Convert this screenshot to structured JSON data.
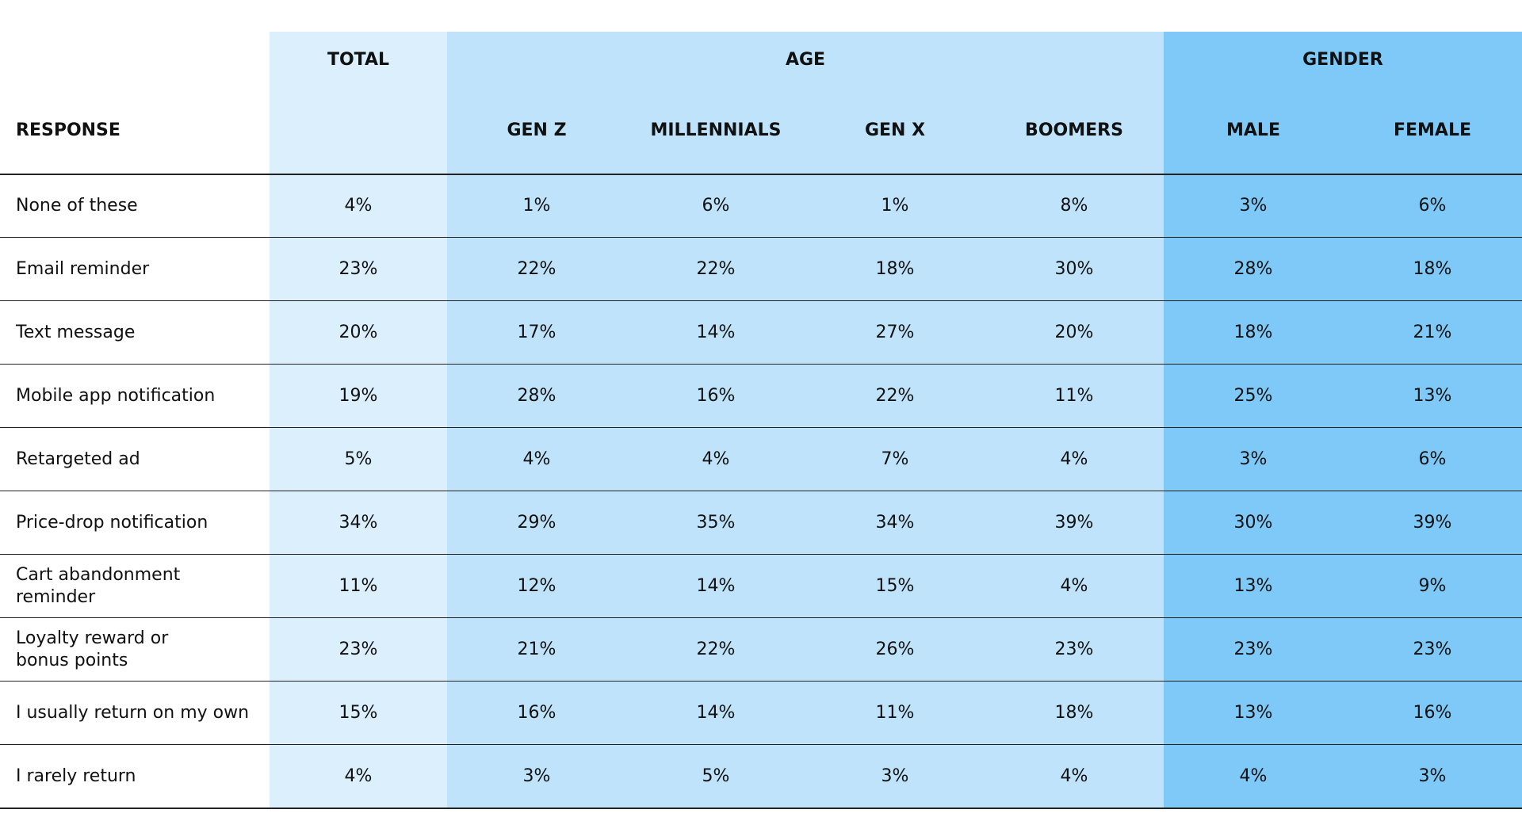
{
  "header": {
    "row_label": "RESPONSE",
    "groups": [
      "TOTAL",
      "AGE",
      "GENDER"
    ],
    "columns": [
      "GEN Z",
      "MILLENNIALS",
      "GEN X",
      "BOOMERS",
      "MALE",
      "FEMALE"
    ]
  },
  "table": {
    "rows": [
      [
        "None of these",
        "4%",
        "1%",
        "6%",
        "1%",
        "8%",
        "3%",
        "6%"
      ],
      [
        "Email reminder",
        "23%",
        "22%",
        "22%",
        "18%",
        "30%",
        "28%",
        "18%"
      ],
      [
        "Text message",
        "20%",
        "17%",
        "14%",
        "27%",
        "20%",
        "18%",
        "21%"
      ],
      [
        "Mobile app notification",
        "19%",
        "28%",
        "16%",
        "22%",
        "11%",
        "25%",
        "13%"
      ],
      [
        "Retargeted ad",
        "5%",
        "4%",
        "4%",
        "7%",
        "4%",
        "3%",
        "6%"
      ],
      [
        "Price-drop notification",
        "34%",
        "29%",
        "35%",
        "34%",
        "39%",
        "30%",
        "39%"
      ],
      [
        "Cart abandonment\nreminder",
        "11%",
        "12%",
        "14%",
        "15%",
        "4%",
        "13%",
        "9%"
      ],
      [
        "Loyalty reward or\nbonus points",
        "23%",
        "21%",
        "22%",
        "26%",
        "23%",
        "23%",
        "23%"
      ],
      [
        "I usually return on my own",
        "15%",
        "16%",
        "14%",
        "11%",
        "18%",
        "13%",
        "16%"
      ],
      [
        "I rarely return",
        "4%",
        "3%",
        "5%",
        "3%",
        "4%",
        "4%",
        "3%"
      ]
    ]
  }
}
